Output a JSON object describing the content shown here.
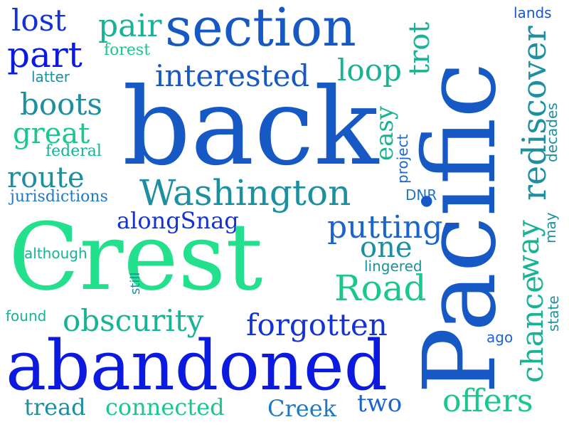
{
  "colors": {
    "deep_blue": "#1433d6",
    "royal_blue": "#1659c4",
    "blue": "#1a64d0",
    "mid_blue": "#1f78c6",
    "teal": "#1c8fa0",
    "sea": "#17b394",
    "green": "#1ac78c",
    "mint": "#22e08c",
    "bright": "#0c1ae0"
  },
  "words": {
    "lost": "lost",
    "pair": "pair",
    "section": "section",
    "trot": "trot",
    "lands": "lands",
    "part": "part",
    "forest": "forest",
    "interested": "interested",
    "loop": "loop",
    "latter": "latter",
    "boots": "boots",
    "back": "back",
    "rediscover": "rediscover",
    "decades": "decades",
    "great": "great",
    "easy": "easy",
    "federal": "federal",
    "project": "project",
    "route": "route",
    "Washington": "Washington",
    "DNR": "DNR",
    "jurisdictions": "jurisdictions",
    "Pacific": "Pacific",
    "alongSnag": "alongSnag",
    "putting": "putting",
    "way": "way",
    "may": "may",
    "one": "one",
    "although": "although",
    "Crest": "Crest",
    "lingered": "lingered",
    "still": "still",
    "Road": "Road",
    "state": "state",
    "found": "found",
    "obscurity": "obscurity",
    "forgotten": "forgotten",
    "chance": "chance",
    "ago": "ago",
    "abandoned": "abandoned",
    "offers": "offers",
    "tread": "tread",
    "connected": "connected",
    "Creek": "Creek",
    "two": "two"
  }
}
